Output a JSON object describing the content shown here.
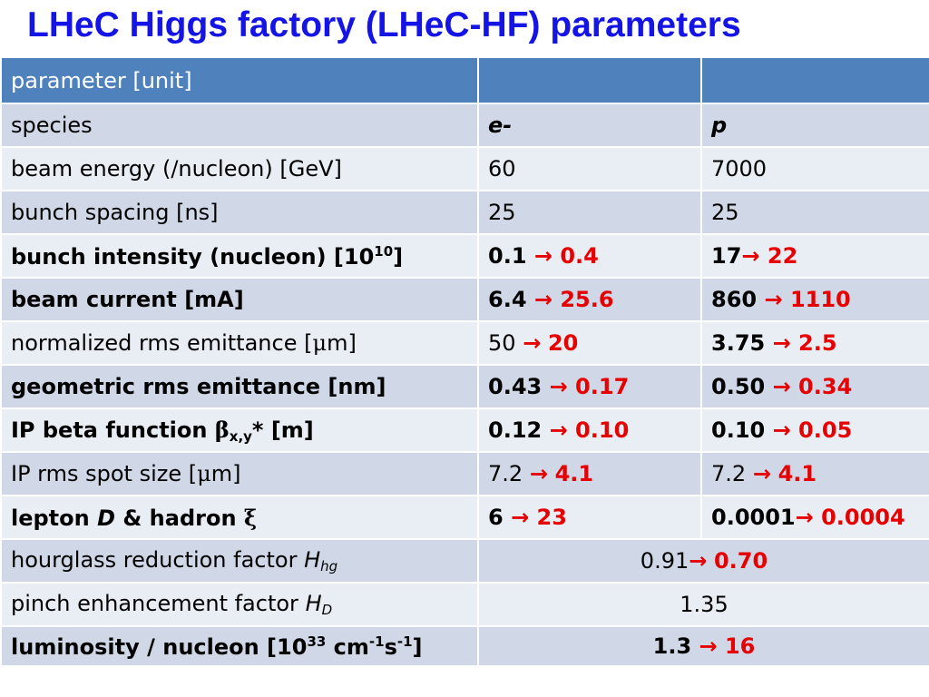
{
  "title": "LHeC Higgs factory (LHeC-HF) parameters",
  "arrow": "→",
  "header": {
    "col1": "parameter [unit]",
    "col2": "",
    "col3": ""
  },
  "rows": [
    {
      "label": "species",
      "e": "e-",
      "p": "p"
    },
    {
      "label": "beam energy (/nucleon) [GeV]",
      "e": "60",
      "p": "7000"
    },
    {
      "label": "bunch spacing [ns]",
      "e": "25",
      "p": "25"
    },
    {
      "label_pre": "bunch intensity (nucleon) [10",
      "label_sup": "10",
      "label_post": "]",
      "e_from": "0.1",
      "e_to": "0.4",
      "p_from": "17",
      "p_to": "22"
    },
    {
      "label": "beam current [mA]",
      "e_from": "6.4",
      "e_to": "25.6",
      "p_from": "860",
      "p_to": "1110"
    },
    {
      "label_pre": "normalized rms emittance [",
      "label_sym": "μ",
      "label_post": "m]",
      "e_from": "50",
      "e_to": "20",
      "p_from": "3.75",
      "p_to": "2.5"
    },
    {
      "label": "geometric rms emittance [nm]",
      "e_from": "0.43",
      "e_to": "0.17",
      "p_from": "0.50",
      "p_to": "0.34"
    },
    {
      "label_pre": "IP beta function ",
      "label_sym": "β",
      "label_sub": "x,y",
      "label_post": "* [m]",
      "e_from": "0.12",
      "e_to": "0.10",
      "p_from": "0.10",
      "p_to": "0.05"
    },
    {
      "label_pre": "IP rms spot size [",
      "label_sym": "μ",
      "label_post": "m]",
      "e_from": "7.2",
      "e_to": "4.1",
      "p_from": "7.2",
      "p_to": "4.1"
    },
    {
      "label_pre": "lepton ",
      "label_it": "D",
      "label_mid": " & hadron ",
      "label_sym": "ξ",
      "e_from": "6",
      "e_to": "23",
      "p_from": "0.0001",
      "p_to": "0.0004"
    },
    {
      "label_pre": "hourglass reduction factor ",
      "label_it": "H",
      "label_sub": "hg",
      "from": "0.91",
      "to": "0.70"
    },
    {
      "label_pre": "pinch enhancement factor ",
      "label_it": "H",
      "label_sub": "D",
      "value": "1.35"
    },
    {
      "label_pre": "luminosity / nucleon [10",
      "label_sup1": "33",
      "label_mid": " cm",
      "label_sup2": "-1",
      "label_mid2": "s",
      "label_sup3": "-1",
      "label_post": "]",
      "from": "1.3",
      "to": "16"
    }
  ]
}
